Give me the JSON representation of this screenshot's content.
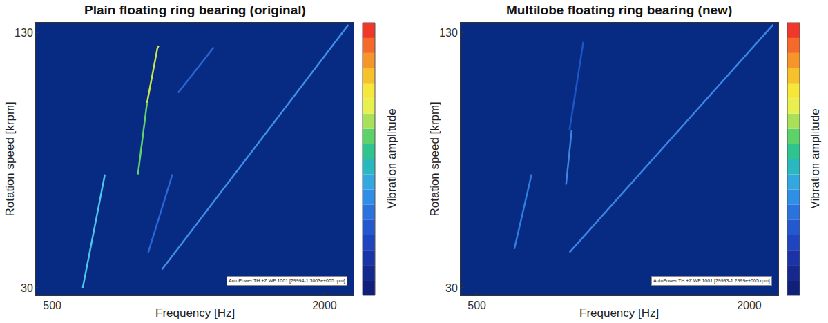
{
  "chart_data": [
    {
      "type": "line",
      "title": "Plain floating ring bearing (original)",
      "x_label": "Frequency [Hz]",
      "y_label": "Rotation speed [krpm]",
      "xlim": [
        410,
        2160
      ],
      "ylim": [
        27,
        134
      ],
      "xticks": [
        500,
        2000
      ],
      "yticks": [
        30,
        130
      ],
      "annotations": [
        "AutoPower TH:+Z WF 1001 [29994-1.3003e+005 rpm]"
      ],
      "colorbar": {
        "title": "Vibration amplitude",
        "colors": [
          "#0f1f7a",
          "#15288e",
          "#1a34a8",
          "#1f44bf",
          "#2458cf",
          "#2a72de",
          "#2f8fe6",
          "#33a8e0",
          "#2ab8c0",
          "#2fc48e",
          "#5ed26a",
          "#a8e05a",
          "#e8f050",
          "#f6e83a",
          "#f6c12a",
          "#f5952a",
          "#f56a2a",
          "#f0382a"
        ]
      },
      "series": [
        {
          "color": "#3f8fe8",
          "x": [
            1105,
            2131
          ],
          "values": [
            37.2,
            133.2
          ]
        },
        {
          "color": "#5ed26a",
          "x": [
            972,
            1022
          ],
          "values": [
            74.5,
            102.5
          ]
        },
        {
          "color": "#c8e44a",
          "x": [
            1022,
            1079,
            1086
          ],
          "values": [
            102.5,
            123.9,
            125
          ]
        },
        {
          "color": "#4ec3e8",
          "x": [
            668,
            698,
            790
          ],
          "values": [
            30,
            41.2,
            74.5
          ]
        },
        {
          "color": "#2a66d4",
          "x": [
            1029,
            1162
          ],
          "values": [
            43.9,
            74.5
          ]
        },
        {
          "color": "#2a66d4",
          "x": [
            1193,
            1390
          ],
          "values": [
            106.5,
            124.4
          ]
        }
      ]
    },
    {
      "type": "line",
      "title": "Multilobe floating ring bearing (new)",
      "x_label": "Frequency [Hz]",
      "y_label": "Rotation speed [krpm]",
      "xlim": [
        410,
        2160
      ],
      "ylim": [
        27,
        134
      ],
      "xticks": [
        500,
        2000
      ],
      "yticks": [
        30,
        130
      ],
      "annotations": [
        "AutoPower TH:+Z WF 1001 [29993-1.2999e+005 rpm]"
      ],
      "colorbar": {
        "title": "Vibration amplitude",
        "colors": [
          "#0f1f7a",
          "#15288e",
          "#1a34a8",
          "#1f44bf",
          "#2458cf",
          "#2a72de",
          "#2f8fe6",
          "#33a8e0",
          "#2ab8c0",
          "#2fc48e",
          "#5ed26a",
          "#a8e05a",
          "#e8f050",
          "#f6e83a",
          "#f6c12a",
          "#f5952a",
          "#f56a2a",
          "#f0382a"
        ]
      },
      "series": [
        {
          "color": "#3a86e4",
          "x": [
            1010,
            2131
          ],
          "values": [
            43.9,
            133.2
          ]
        },
        {
          "color": "#2f7fe0",
          "x": [
            706,
            801
          ],
          "values": [
            45.2,
            74.5
          ]
        },
        {
          "color": "#3a86e4",
          "x": [
            991,
            1022
          ],
          "values": [
            70.5,
            91.9
          ]
        },
        {
          "color": "#1e56c8",
          "x": [
            1010,
            1086
          ],
          "values": [
            91.9,
            126.5
          ]
        }
      ]
    }
  ]
}
